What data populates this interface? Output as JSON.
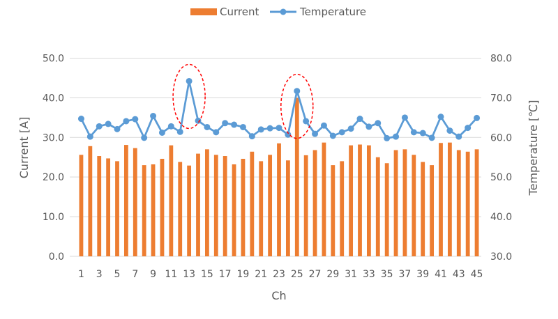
{
  "chart_data": {
    "type": "bar-line-combo",
    "categories": [
      1,
      2,
      3,
      4,
      5,
      6,
      7,
      8,
      9,
      10,
      11,
      12,
      13,
      14,
      15,
      16,
      17,
      18,
      19,
      20,
      21,
      22,
      23,
      24,
      25,
      26,
      27,
      28,
      29,
      30,
      31,
      32,
      33,
      34,
      35,
      36,
      37,
      38,
      39,
      40,
      41,
      42,
      43,
      44,
      45
    ],
    "x_tick_labels": [
      "1",
      "3",
      "5",
      "7",
      "9",
      "11",
      "13",
      "15",
      "17",
      "19",
      "21",
      "23",
      "25",
      "27",
      "29",
      "31",
      "33",
      "35",
      "37",
      "39",
      "41",
      "43",
      "45"
    ],
    "xlabel": "Ch",
    "y_left": {
      "label": "Current  [A]",
      "range": [
        0,
        55
      ],
      "ticks": [
        "0.0",
        "10.0",
        "20.0",
        "30.0",
        "40.0",
        "50.0"
      ],
      "tick_values": [
        0,
        10,
        20,
        30,
        40,
        50
      ]
    },
    "y_right": {
      "label": "Temperature [℃]",
      "range": [
        30,
        85
      ],
      "ticks": [
        "30.0",
        "40.0",
        "50.0",
        "60.0",
        "70.0",
        "80.0"
      ],
      "tick_values": [
        30,
        40,
        50,
        60,
        70,
        80
      ]
    },
    "legend_position": "top-center",
    "grid": "horizontal",
    "series": [
      {
        "name": "Current",
        "kind": "bar",
        "axis": "left",
        "color": "#ED7D31",
        "values": [
          25.6,
          27.8,
          25.3,
          24.7,
          24.0,
          28.1,
          27.3,
          23.0,
          23.2,
          24.6,
          28.0,
          23.8,
          22.9,
          25.9,
          27.0,
          25.6,
          25.3,
          23.2,
          24.6,
          26.4,
          24.0,
          25.6,
          28.5,
          24.2,
          40.0,
          25.5,
          26.8,
          28.7,
          23.0,
          24.0,
          28.0,
          28.2,
          28.0,
          25.0,
          23.5,
          26.8,
          27.0,
          25.6,
          23.8,
          23.0,
          28.6,
          28.7,
          26.8,
          26.4,
          27.0
        ]
      },
      {
        "name": "Temperature",
        "kind": "line",
        "axis": "right",
        "color": "#5B9BD5",
        "values": [
          64.7,
          60.2,
          62.8,
          63.4,
          62.1,
          64.1,
          64.6,
          59.9,
          65.4,
          61.2,
          62.8,
          61.4,
          74.2,
          64.2,
          62.6,
          61.3,
          63.6,
          63.2,
          62.6,
          60.3,
          62.0,
          62.3,
          62.4,
          60.7,
          71.7,
          64.1,
          60.9,
          63.0,
          60.4,
          61.3,
          62.2,
          64.7,
          62.7,
          63.6,
          59.8,
          60.2,
          65.0,
          61.3,
          61.1,
          59.9,
          65.2,
          61.7,
          60.2,
          62.4,
          64.9
        ]
      }
    ],
    "annotations": [
      {
        "type": "dashed-ellipse",
        "color": "#FF0000",
        "category": 13
      },
      {
        "type": "dashed-ellipse",
        "color": "#FF0000",
        "category": 25
      }
    ]
  }
}
